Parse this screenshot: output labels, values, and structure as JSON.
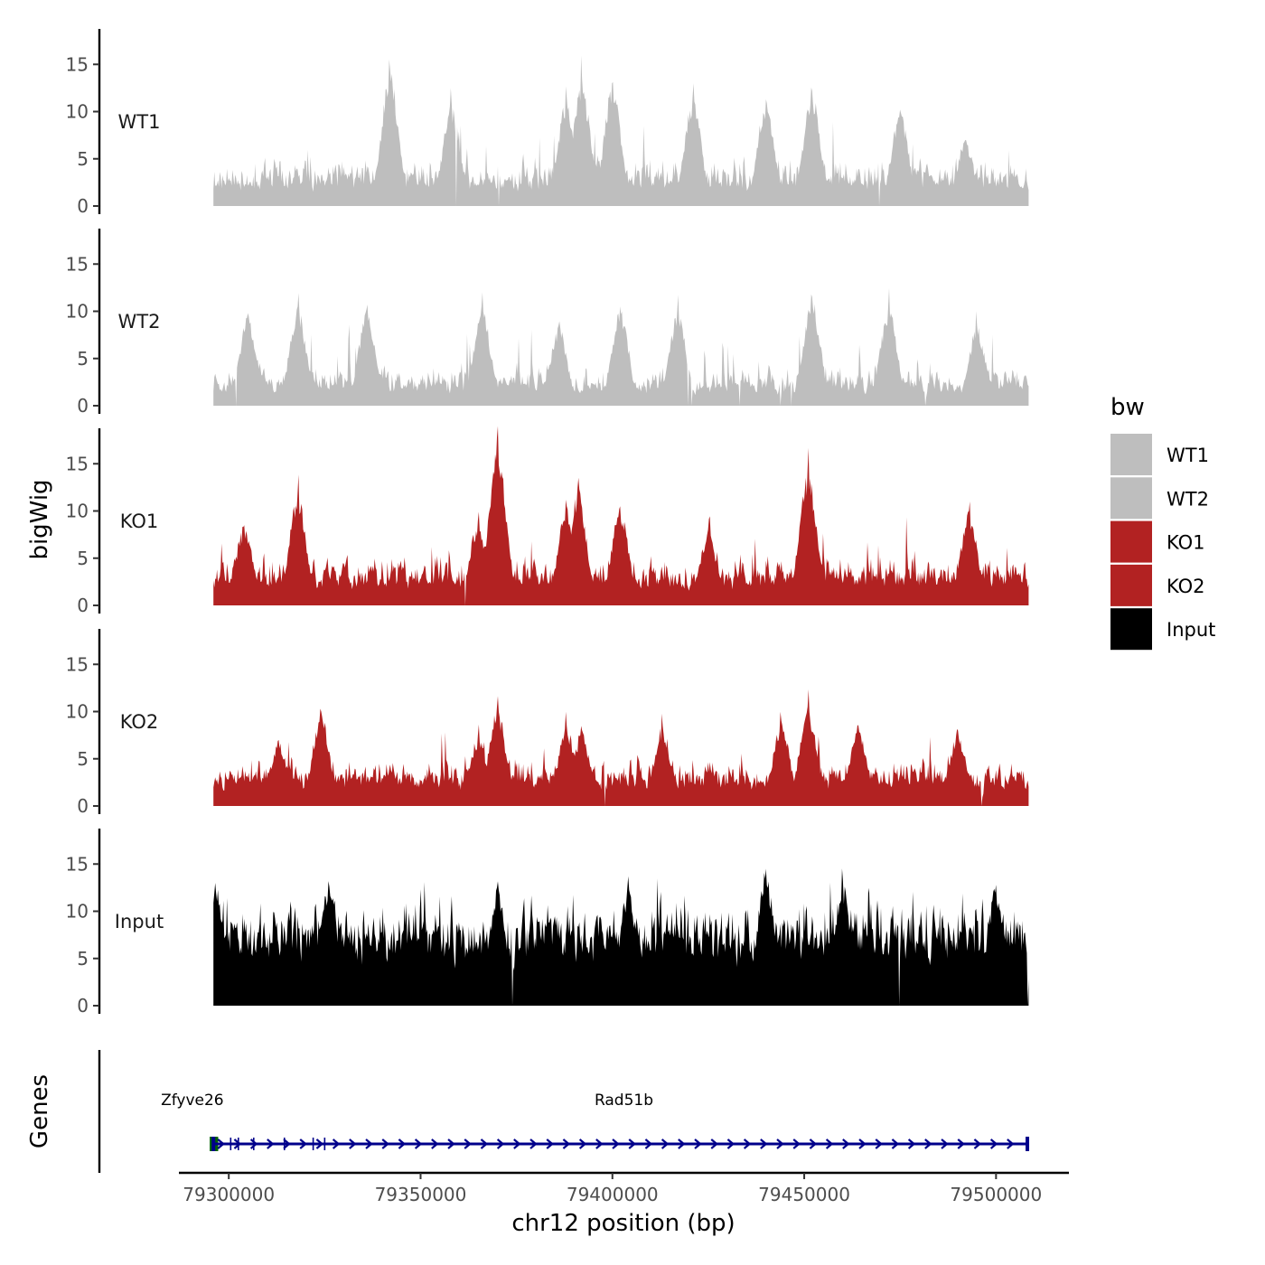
{
  "chart_data": {
    "type": "area",
    "panel_type": "genome-browser-coverage",
    "ylabel": "bigWig",
    "xlabel": "chr12 position (bp)",
    "genes_label": "Genes",
    "xlim": [
      79287000,
      79519000
    ],
    "region": [
      79296000,
      79508500
    ],
    "x_ticks": [
      79300000,
      79350000,
      79400000,
      79450000,
      79500000
    ],
    "x_tick_labels": [
      "79300000",
      "79350000",
      "79400000",
      "79450000",
      "79500000"
    ],
    "ylim": [
      0,
      19
    ],
    "y_ticks": [
      0,
      5,
      10,
      15
    ],
    "y_tick_labels": [
      "0",
      "5",
      "10",
      "15"
    ],
    "tracks": [
      {
        "name": "WT1",
        "color": "#bebebe",
        "seed": 11,
        "baseline": 2.0,
        "noise": 3.2,
        "spike_prob": 0.02,
        "spike_max": 7.0,
        "peaks": [
          [
            79342000,
            14.5
          ],
          [
            79358000,
            10.8
          ],
          [
            79388000,
            11.5
          ],
          [
            79392000,
            13.4
          ],
          [
            79400000,
            13.0
          ],
          [
            79421000,
            11.5
          ],
          [
            79440000,
            11.3
          ],
          [
            79452000,
            12.2
          ],
          [
            79475000,
            10.2
          ],
          [
            79492000,
            7.0
          ]
        ]
      },
      {
        "name": "WT2",
        "color": "#bebebe",
        "seed": 23,
        "baseline": 1.6,
        "noise": 3.0,
        "spike_prob": 0.02,
        "spike_max": 6.5,
        "peaks": [
          [
            79305000,
            9.8
          ],
          [
            79318000,
            10.5
          ],
          [
            79336000,
            10.2
          ],
          [
            79366000,
            10.5
          ],
          [
            79386000,
            8.5
          ],
          [
            79402000,
            10.5
          ],
          [
            79417000,
            10.0
          ],
          [
            79452000,
            11.5
          ],
          [
            79472000,
            10.5
          ],
          [
            79495000,
            8.5
          ]
        ]
      },
      {
        "name": "KO1",
        "color": "#b22222",
        "seed": 37,
        "baseline": 2.2,
        "noise": 3.2,
        "spike_prob": 0.02,
        "spike_max": 7.0,
        "peaks": [
          [
            79304000,
            8.5
          ],
          [
            79318000,
            12.0
          ],
          [
            79365000,
            9.0
          ],
          [
            79370000,
            17.8
          ],
          [
            79388000,
            10.5
          ],
          [
            79391000,
            12.5
          ],
          [
            79402000,
            10.5
          ],
          [
            79425000,
            8.0
          ],
          [
            79451000,
            14.5
          ],
          [
            79493000,
            10.0
          ]
        ]
      },
      {
        "name": "KO2",
        "color": "#b22222",
        "seed": 53,
        "baseline": 2.3,
        "noise": 3.0,
        "spike_prob": 0.02,
        "spike_max": 6.5,
        "peaks": [
          [
            79313000,
            7.0
          ],
          [
            79324000,
            10.0
          ],
          [
            79365000,
            7.5
          ],
          [
            79370000,
            10.5
          ],
          [
            79388000,
            8.5
          ],
          [
            79392000,
            8.0
          ],
          [
            79413000,
            8.5
          ],
          [
            79444000,
            9.0
          ],
          [
            79451000,
            10.5
          ],
          [
            79464000,
            8.5
          ],
          [
            79490000,
            8.0
          ]
        ]
      },
      {
        "name": "Input",
        "color": "#000000",
        "seed": 71,
        "baseline": 5.8,
        "noise": 5.5,
        "spike_prob": 0.03,
        "spike_max": 6.0,
        "peaks": [
          [
            79296500,
            13.0
          ],
          [
            79326000,
            13.2
          ],
          [
            79370000,
            12.5
          ],
          [
            79404000,
            12.5
          ],
          [
            79440000,
            14.5
          ],
          [
            79460000,
            13.2
          ],
          [
            79500000,
            12.8
          ]
        ]
      }
    ],
    "gene_track": {
      "genes": [
        {
          "name": "Zfyve26",
          "start": 79295500,
          "end": 79297000,
          "strand": "-",
          "color": "#006400",
          "label_x": 79290500
        },
        {
          "name": "Rad51b",
          "start": 79296000,
          "end": 79508400,
          "strand": "+",
          "color": "#00008b",
          "label_x": 79403000
        }
      ]
    },
    "legend": {
      "title": "bw",
      "items": [
        {
          "label": "WT1",
          "color": "#bebebe"
        },
        {
          "label": "WT2",
          "color": "#bebebe"
        },
        {
          "label": "KO1",
          "color": "#b22222"
        },
        {
          "label": "KO2",
          "color": "#b22222"
        },
        {
          "label": "Input",
          "color": "#000000"
        }
      ]
    }
  }
}
